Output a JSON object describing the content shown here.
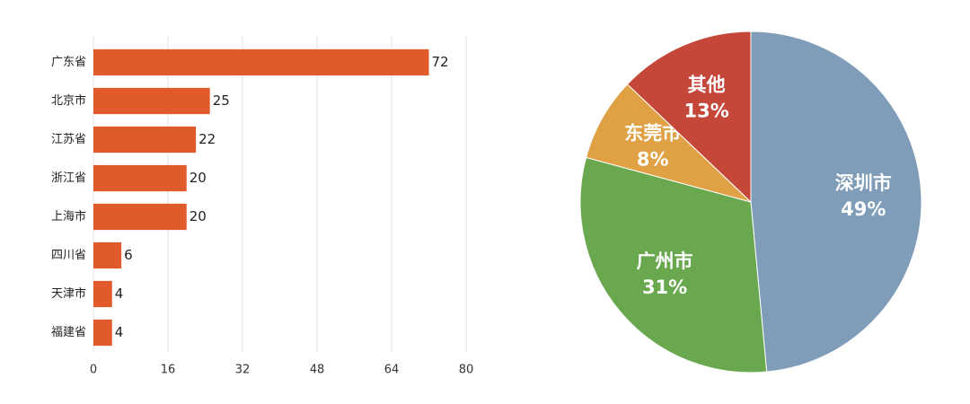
{
  "chart_data": [
    {
      "type": "barh",
      "categories": [
        "广东省",
        "北京市",
        "江苏省",
        "浙江省",
        "上海市",
        "四川省",
        "天津市",
        "福建省"
      ],
      "values": [
        72,
        25,
        22,
        20,
        20,
        6,
        4,
        4
      ],
      "color": "#e05a2b",
      "xlim": [
        0,
        80
      ],
      "xticks": [
        0,
        16,
        32,
        48,
        64,
        80
      ],
      "grid": true
    },
    {
      "type": "pie",
      "categories": [
        "深圳市",
        "广州市",
        "东莞市",
        "其他"
      ],
      "values": [
        49,
        31,
        8,
        13
      ],
      "value_labels": [
        "49%",
        "31%",
        "8%",
        "13%"
      ],
      "colors": [
        "#7f9db9",
        "#6aa84f",
        "#e0a044",
        "#c4473a"
      ]
    }
  ]
}
